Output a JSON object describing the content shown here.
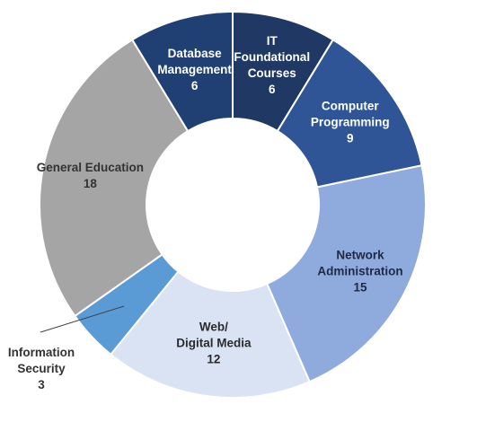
{
  "chart_data": {
    "type": "pie",
    "title": "",
    "variant": "donut",
    "series": [
      {
        "name": "",
        "slices": [
          {
            "id": "it-foundational",
            "label": [
              "IT",
              "Foundational",
              "Courses"
            ],
            "value": 6,
            "value_label": "6",
            "color": "#1f3864",
            "text_color": "#ffffff"
          },
          {
            "id": "computer-programming",
            "label": [
              "Computer",
              "Programming"
            ],
            "value": 9,
            "value_label": "9",
            "color": "#2f5597",
            "text_color": "#ffffff"
          },
          {
            "id": "network-administration",
            "label": [
              "Network",
              "Administration"
            ],
            "value": 15,
            "value_label": "15",
            "color": "#8faadc",
            "text_color": "#1f2a44"
          },
          {
            "id": "web-digital-media",
            "label": [
              "Web/",
              "Digital Media"
            ],
            "value": 12,
            "value_label": "12",
            "color": "#dae3f3",
            "text_color": "#2b2b2b"
          },
          {
            "id": "information-security",
            "label": [
              "Information",
              "Security"
            ],
            "value": 3,
            "value_label": "3",
            "color": "#5b9bd5",
            "text_color": "#333333",
            "external_label": true
          },
          {
            "id": "general-education",
            "label": [
              "General Education"
            ],
            "value": 18,
            "value_label": "18",
            "color": "#a5a5a5",
            "text_color": "#333333"
          },
          {
            "id": "database-management",
            "label": [
              "Database",
              "Management"
            ],
            "value": 6,
            "value_label": "6",
            "color": "#203f73",
            "text_color": "#ffffff"
          }
        ]
      }
    ],
    "legend": "none",
    "slice_border_color": "#ffffff"
  }
}
